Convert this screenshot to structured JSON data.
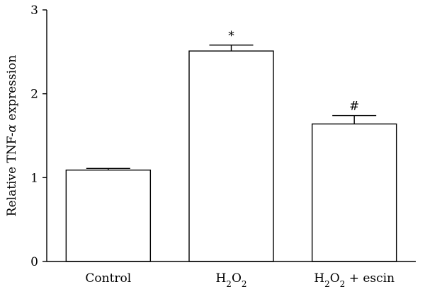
{
  "chart_data": {
    "type": "bar",
    "categories": [
      {
        "main": "Control",
        "parts": [
          {
            "t": "Control",
            "sub": false
          }
        ]
      },
      {
        "main": "H2O2",
        "parts": [
          {
            "t": "H",
            "sub": false
          },
          {
            "t": "2",
            "sub": true
          },
          {
            "t": "O",
            "sub": false
          },
          {
            "t": "2",
            "sub": true
          }
        ]
      },
      {
        "main": "H2O2 + escin",
        "parts": [
          {
            "t": "H",
            "sub": false
          },
          {
            "t": "2",
            "sub": true
          },
          {
            "t": "O",
            "sub": false
          },
          {
            "t": "2",
            "sub": true
          },
          {
            "t": " + escin",
            "sub": false
          }
        ]
      }
    ],
    "values": [
      1.09,
      2.51,
      1.64
    ],
    "errors": [
      0.02,
      0.07,
      0.1
    ],
    "annotations": [
      "",
      "*",
      "#"
    ],
    "ylabel_parts": [
      {
        "t": "Relative TNF-",
        "italic": false
      },
      {
        "t": "α",
        "italic": true
      },
      {
        "t": " expression",
        "italic": false
      }
    ],
    "ylim": [
      0,
      3
    ],
    "yticks": [
      0,
      1,
      2,
      3
    ],
    "grid": false,
    "colors": {
      "bar_fill": "#ffffff",
      "bar_stroke": "#000000",
      "axis": "#000000"
    }
  }
}
